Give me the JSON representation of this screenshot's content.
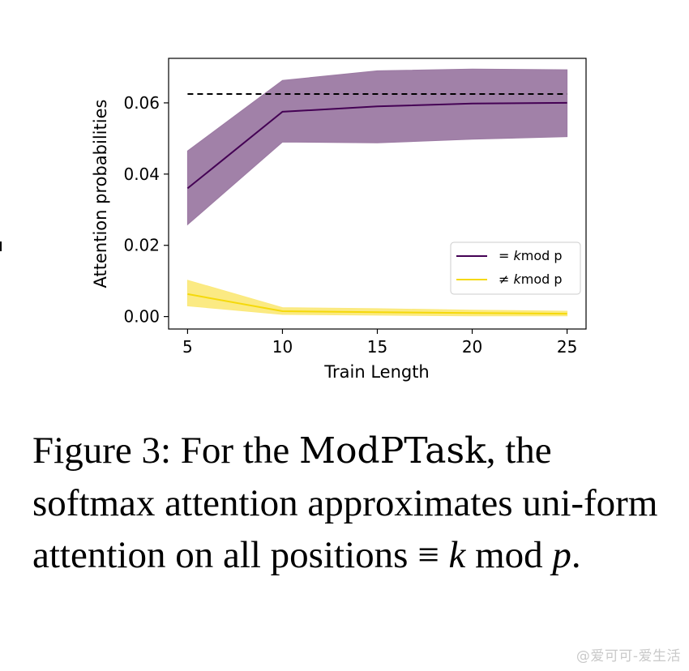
{
  "chart_data": {
    "type": "line",
    "xlabel": "Train Length",
    "ylabel": "Attention probabilities",
    "xlim": [
      4,
      26
    ],
    "ylim": [
      -0.0035,
      0.0725
    ],
    "x_ticks": [
      5,
      10,
      15,
      20,
      25
    ],
    "y_ticks": [
      0.0,
      0.02,
      0.04,
      0.06
    ],
    "y_tick_labels": [
      "0.00",
      "0.02",
      "0.04",
      "0.06"
    ],
    "x": [
      5,
      10,
      15,
      20,
      25
    ],
    "reference_line": {
      "y": 0.0625,
      "style": "dashed",
      "color": "#000000"
    },
    "legend_position": "center-right",
    "grid": false,
    "series": [
      {
        "name_prefix": "= ",
        "name_italic": "k",
        "name_suffix": "mod p",
        "color": "#440154",
        "fill": "#9c7aa3",
        "mean": [
          0.036,
          0.0575,
          0.059,
          0.0598,
          0.06
        ],
        "upper": [
          0.0465,
          0.0663,
          0.069,
          0.0695,
          0.0693
        ],
        "lower": [
          0.0258,
          0.049,
          0.0488,
          0.0498,
          0.0505
        ]
      },
      {
        "name_prefix": "≠ ",
        "name_italic": "k",
        "name_suffix": "mod p",
        "color": "#fde725",
        "fill": "#fbe97c",
        "mean": [
          0.0063,
          0.0015,
          0.0012,
          0.001,
          0.0008
        ],
        "upper": [
          0.0102,
          0.0025,
          0.0022,
          0.0018,
          0.0015
        ],
        "lower": [
          0.003,
          0.0006,
          0.0004,
          0.0002,
          0.0002
        ]
      }
    ]
  },
  "caption": {
    "prefix": "Figure 3:  For the ",
    "task": "ModPTask",
    "middle": ", the softmax attention approximates uni-form attention on all positions ",
    "equiv": "≡",
    "k": "k",
    "mod": "mod",
    "p": "p",
    "end": "."
  },
  "watermark": "@爱可可-爱生活"
}
